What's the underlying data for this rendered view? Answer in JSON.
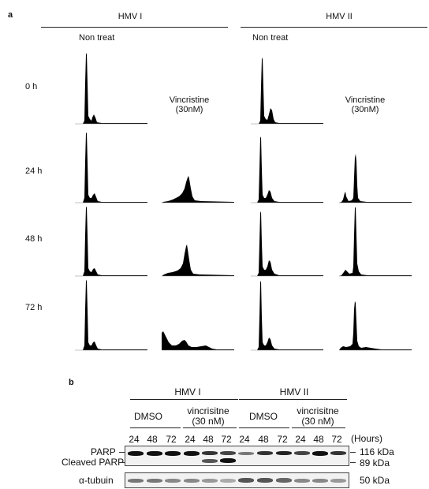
{
  "panel_a": {
    "label": "a",
    "group1": "HMV I",
    "group2": "HMV II",
    "non_treat": "Non treat",
    "treatment": "Vincristine",
    "treatment_dose": "(30nM)",
    "timepoints": [
      "0 h",
      "24 h",
      "48 h",
      "72 h"
    ]
  },
  "panel_b": {
    "label": "b",
    "group1": "HMV I",
    "group2": "HMV II",
    "dmso": "DMSO",
    "vcr_line1": "vincrisitne",
    "vcr_line2": "(30 nM)",
    "lanes": [
      "24",
      "48",
      "72",
      "24",
      "48",
      "72",
      "24",
      "48",
      "72",
      "24",
      "48",
      "72"
    ],
    "hours_label": "(Hours)",
    "left_labels": [
      "PARP",
      "Cleaved PARP",
      "α-tubuin"
    ],
    "right_labels": [
      "116 kDa",
      "89 kDa",
      "50 kDa"
    ]
  }
}
